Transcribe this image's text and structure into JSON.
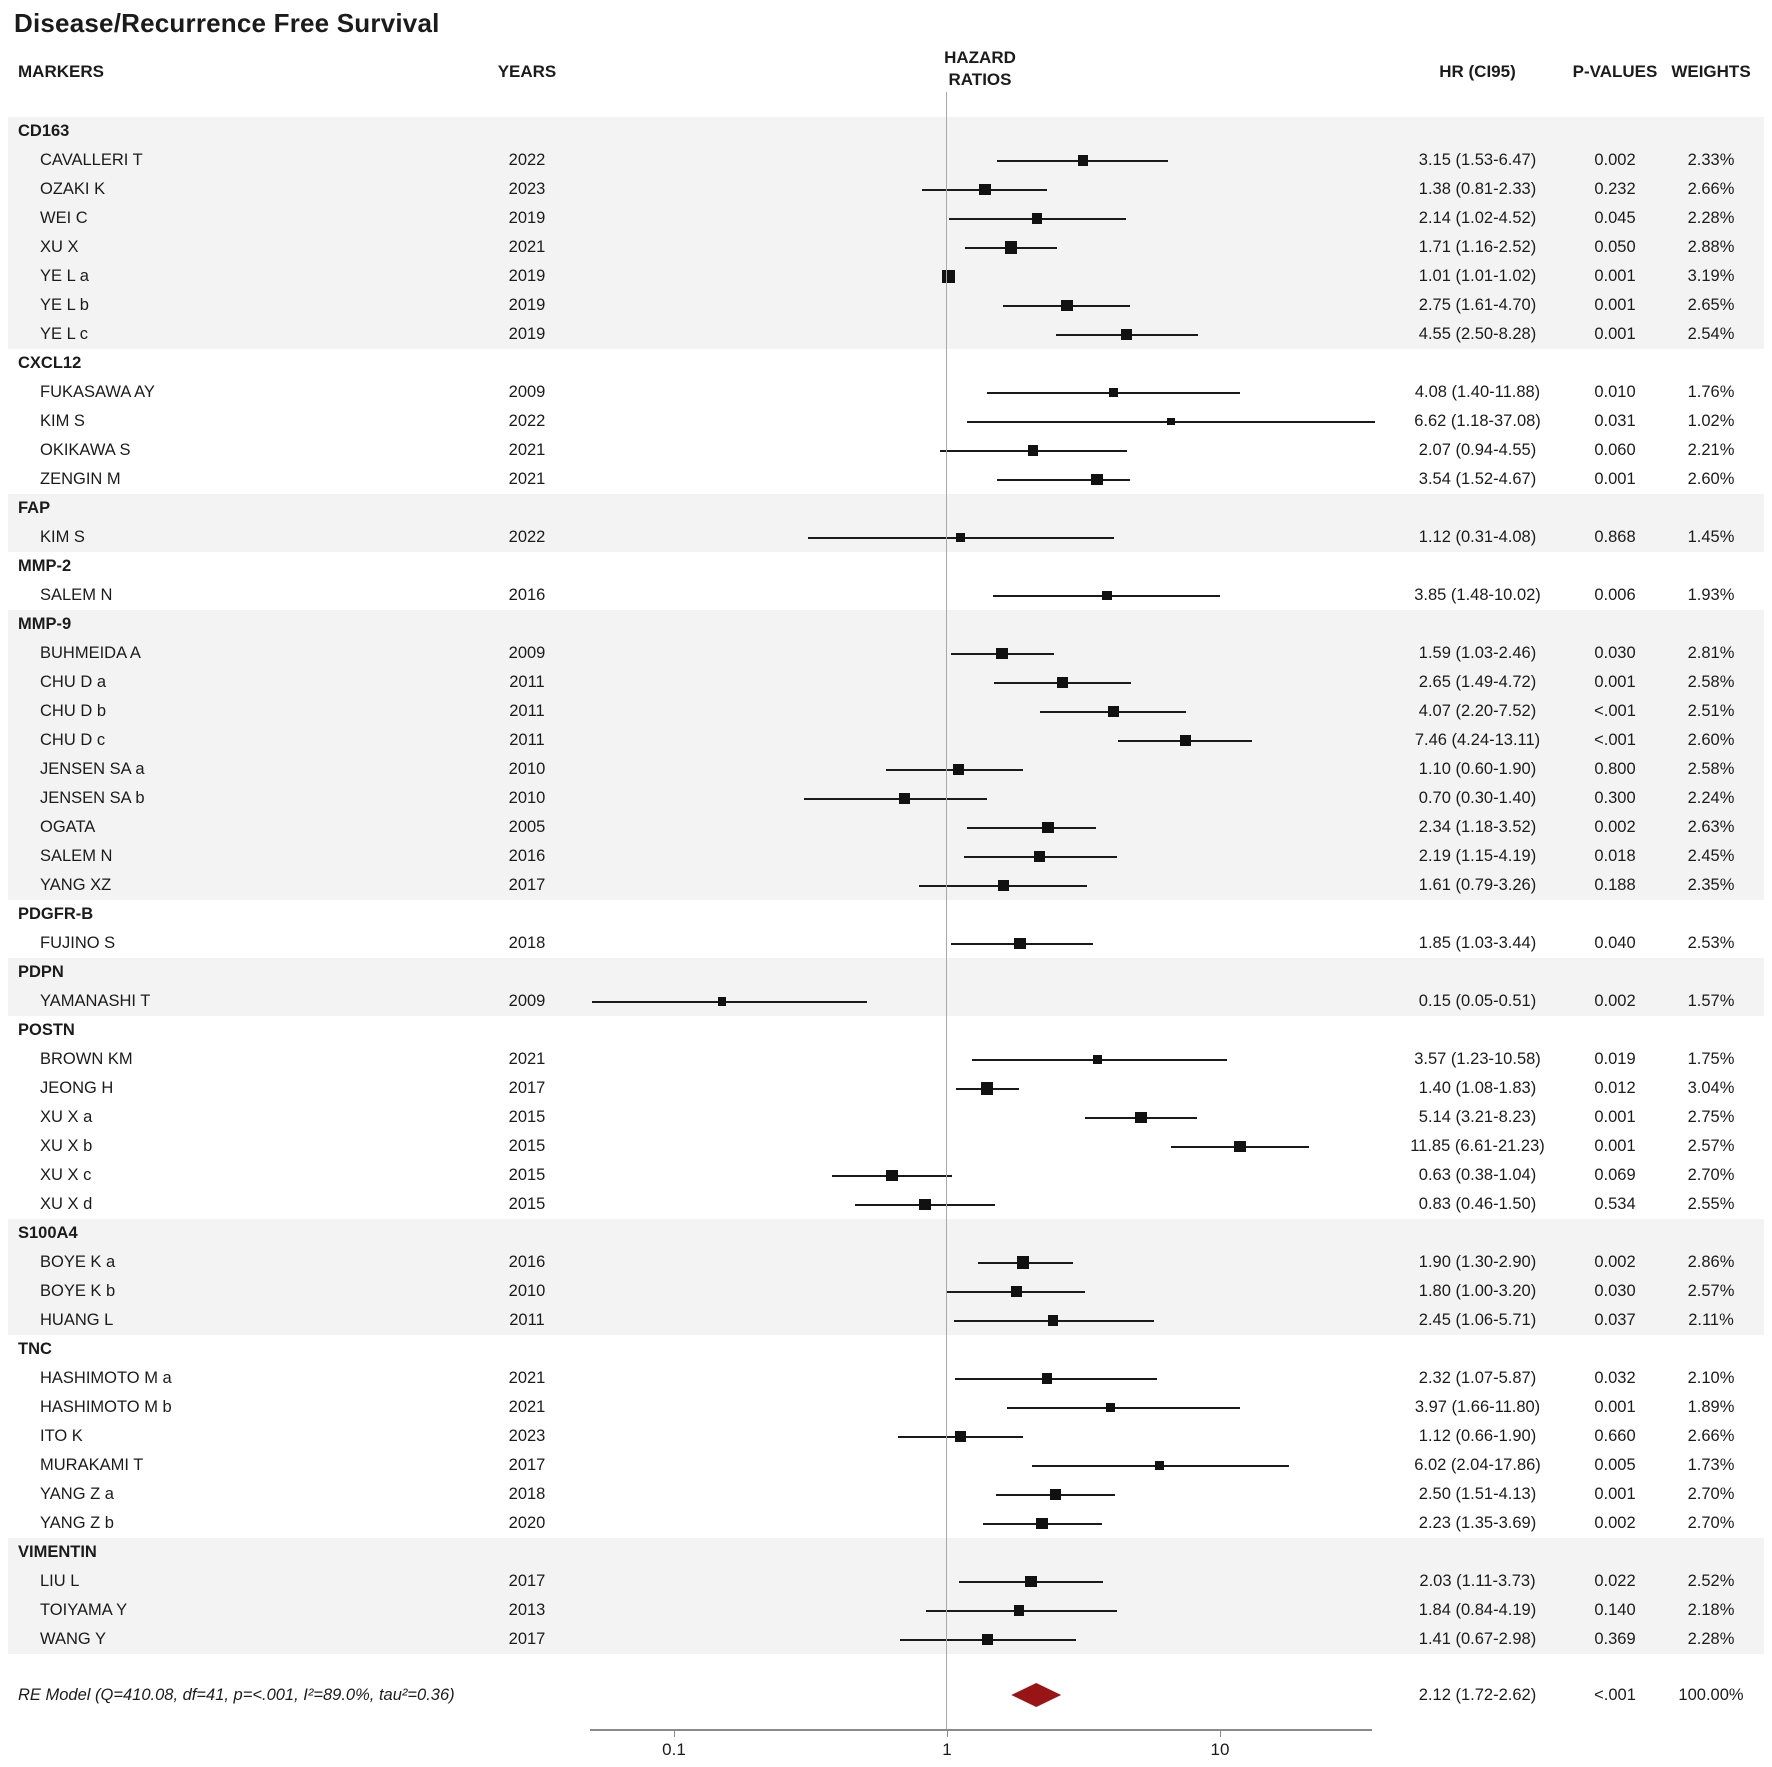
{
  "title": "Disease/Recurrence Free Survival",
  "columns": {
    "markers": "MARKERS",
    "years": "YEARS",
    "hazard_line1": "HAZARD",
    "hazard_line2": "RATIOS",
    "hr": "HR (CI95)",
    "p": "P-VALUES",
    "weights": "WEIGHTS"
  },
  "chart_data": {
    "type": "forest",
    "x_scale": "log10",
    "x_range": [
      0.05,
      36
    ],
    "reference_line": 1,
    "x_ticks": [
      0.1,
      1,
      10
    ],
    "x_tick_labels": [
      "0.1",
      "1",
      "10"
    ],
    "legend_position": "none",
    "grid": false,
    "colors": {
      "marker": "#111111",
      "ci_line": "#1a1a1a",
      "stripe": "#f3f3f3",
      "axis": "#8a8a8a",
      "ref_line": "#a8a8a8",
      "diamond": "#991414"
    },
    "groups": [
      {
        "name": "CD163",
        "shaded": true,
        "studies": [
          {
            "name": "CAVALLERI T",
            "year": "2022",
            "hr": 3.15,
            "lo": 1.53,
            "hi": 6.47,
            "hr_label": "3.15 (1.53-6.47)",
            "p": "0.002",
            "weight": "2.33%"
          },
          {
            "name": "OZAKI K",
            "year": "2023",
            "hr": 1.38,
            "lo": 0.81,
            "hi": 2.33,
            "hr_label": "1.38 (0.81-2.33)",
            "p": "0.232",
            "weight": "2.66%"
          },
          {
            "name": "WEI C",
            "year": "2019",
            "hr": 2.14,
            "lo": 1.02,
            "hi": 4.52,
            "hr_label": "2.14 (1.02-4.52)",
            "p": "0.045",
            "weight": "2.28%"
          },
          {
            "name": "XU X",
            "year": "2021",
            "hr": 1.71,
            "lo": 1.16,
            "hi": 2.52,
            "hr_label": "1.71 (1.16-2.52)",
            "p": "0.050",
            "weight": "2.88%"
          },
          {
            "name": "YE L a",
            "year": "2019",
            "hr": 1.01,
            "lo": 1.01,
            "hi": 1.02,
            "hr_label": "1.01 (1.01-1.02)",
            "p": "0.001",
            "weight": "3.19%"
          },
          {
            "name": "YE L b",
            "year": "2019",
            "hr": 2.75,
            "lo": 1.61,
            "hi": 4.7,
            "hr_label": "2.75 (1.61-4.70)",
            "p": "0.001",
            "weight": "2.65%"
          },
          {
            "name": "YE L c",
            "year": "2019",
            "hr": 4.55,
            "lo": 2.5,
            "hi": 8.28,
            "hr_label": "4.55 (2.50-8.28)",
            "p": "0.001",
            "weight": "2.54%"
          }
        ]
      },
      {
        "name": "CXCL12",
        "shaded": false,
        "studies": [
          {
            "name": "FUKASAWA AY",
            "year": "2009",
            "hr": 4.08,
            "lo": 1.4,
            "hi": 11.88,
            "hr_label": "4.08 (1.40-11.88)",
            "p": "0.010",
            "weight": "1.76%"
          },
          {
            "name": "KIM S",
            "year": "2022",
            "hr": 6.62,
            "lo": 1.18,
            "hi": 37.08,
            "hr_label": "6.62 (1.18-37.08)",
            "p": "0.031",
            "weight": "1.02%"
          },
          {
            "name": "OKIKAWA S",
            "year": "2021",
            "hr": 2.07,
            "lo": 0.94,
            "hi": 4.55,
            "hr_label": "2.07 (0.94-4.55)",
            "p": "0.060",
            "weight": "2.21%"
          },
          {
            "name": "ZENGIN M",
            "year": "2021",
            "hr": 3.54,
            "lo": 1.52,
            "hi": 4.67,
            "hr_label": "3.54 (1.52-4.67)",
            "p": "0.001",
            "weight": "2.60%"
          }
        ]
      },
      {
        "name": "FAP",
        "shaded": true,
        "studies": [
          {
            "name": "KIM S",
            "year": "2022",
            "hr": 1.12,
            "lo": 0.31,
            "hi": 4.08,
            "hr_label": "1.12 (0.31-4.08)",
            "p": "0.868",
            "weight": "1.45%"
          }
        ]
      },
      {
        "name": "MMP-2",
        "shaded": false,
        "studies": [
          {
            "name": "SALEM N",
            "year": "2016",
            "hr": 3.85,
            "lo": 1.48,
            "hi": 10.02,
            "hr_label": "3.85 (1.48-10.02)",
            "p": "0.006",
            "weight": "1.93%"
          }
        ]
      },
      {
        "name": "MMP-9",
        "shaded": true,
        "studies": [
          {
            "name": "BUHMEIDA A",
            "year": "2009",
            "hr": 1.59,
            "lo": 1.03,
            "hi": 2.46,
            "hr_label": "1.59 (1.03-2.46)",
            "p": "0.030",
            "weight": "2.81%"
          },
          {
            "name": "CHU D a",
            "year": "2011",
            "hr": 2.65,
            "lo": 1.49,
            "hi": 4.72,
            "hr_label": "2.65 (1.49-4.72)",
            "p": "0.001",
            "weight": "2.58%"
          },
          {
            "name": "CHU D b",
            "year": "2011",
            "hr": 4.07,
            "lo": 2.2,
            "hi": 7.52,
            "hr_label": "4.07 (2.20-7.52)",
            "p": "<.001",
            "weight": "2.51%"
          },
          {
            "name": "CHU D c",
            "year": "2011",
            "hr": 7.46,
            "lo": 4.24,
            "hi": 13.11,
            "hr_label": "7.46 (4.24-13.11)",
            "p": "<.001",
            "weight": "2.60%"
          },
          {
            "name": "JENSEN SA a",
            "year": "2010",
            "hr": 1.1,
            "lo": 0.6,
            "hi": 1.9,
            "hr_label": "1.10 (0.60-1.90)",
            "p": "0.800",
            "weight": "2.58%"
          },
          {
            "name": "JENSEN SA b",
            "year": "2010",
            "hr": 0.7,
            "lo": 0.3,
            "hi": 1.4,
            "hr_label": "0.70 (0.30-1.40)",
            "p": "0.300",
            "weight": "2.24%"
          },
          {
            "name": "OGATA",
            "year": "2005",
            "hr": 2.34,
            "lo": 1.18,
            "hi": 3.52,
            "hr_label": "2.34 (1.18-3.52)",
            "p": "0.002",
            "weight": "2.63%"
          },
          {
            "name": "SALEM N",
            "year": "2016",
            "hr": 2.19,
            "lo": 1.15,
            "hi": 4.19,
            "hr_label": "2.19 (1.15-4.19)",
            "p": "0.018",
            "weight": "2.45%"
          },
          {
            "name": "YANG XZ",
            "year": "2017",
            "hr": 1.61,
            "lo": 0.79,
            "hi": 3.26,
            "hr_label": "1.61 (0.79-3.26)",
            "p": "0.188",
            "weight": "2.35%"
          }
        ]
      },
      {
        "name": "PDGFR-B",
        "shaded": false,
        "studies": [
          {
            "name": "FUJINO S",
            "year": "2018",
            "hr": 1.85,
            "lo": 1.03,
            "hi": 3.44,
            "hr_label": "1.85 (1.03-3.44)",
            "p": "0.040",
            "weight": "2.53%"
          }
        ]
      },
      {
        "name": "PDPN",
        "shaded": true,
        "studies": [
          {
            "name": "YAMANASHI T",
            "year": "2009",
            "hr": 0.15,
            "lo": 0.05,
            "hi": 0.51,
            "hr_label": "0.15 (0.05-0.51)",
            "p": "0.002",
            "weight": "1.57%"
          }
        ]
      },
      {
        "name": "POSTN",
        "shaded": false,
        "studies": [
          {
            "name": "BROWN KM",
            "year": "2021",
            "hr": 3.57,
            "lo": 1.23,
            "hi": 10.58,
            "hr_label": "3.57 (1.23-10.58)",
            "p": "0.019",
            "weight": "1.75%"
          },
          {
            "name": "JEONG H",
            "year": "2017",
            "hr": 1.4,
            "lo": 1.08,
            "hi": 1.83,
            "hr_label": "1.40 (1.08-1.83)",
            "p": "0.012",
            "weight": "3.04%"
          },
          {
            "name": "XU X a",
            "year": "2015",
            "hr": 5.14,
            "lo": 3.21,
            "hi": 8.23,
            "hr_label": "5.14 (3.21-8.23)",
            "p": "0.001",
            "weight": "2.75%"
          },
          {
            "name": "XU X b",
            "year": "2015",
            "hr": 11.85,
            "lo": 6.61,
            "hi": 21.23,
            "hr_label": "11.85 (6.61-21.23)",
            "p": "0.001",
            "weight": "2.57%"
          },
          {
            "name": "XU X c",
            "year": "2015",
            "hr": 0.63,
            "lo": 0.38,
            "hi": 1.04,
            "hr_label": "0.63 (0.38-1.04)",
            "p": "0.069",
            "weight": "2.70%"
          },
          {
            "name": "XU X d",
            "year": "2015",
            "hr": 0.83,
            "lo": 0.46,
            "hi": 1.5,
            "hr_label": "0.83 (0.46-1.50)",
            "p": "0.534",
            "weight": "2.55%"
          }
        ]
      },
      {
        "name": "S100A4",
        "shaded": true,
        "studies": [
          {
            "name": "BOYE K a",
            "year": "2016",
            "hr": 1.9,
            "lo": 1.3,
            "hi": 2.9,
            "hr_label": "1.90 (1.30-2.90)",
            "p": "0.002",
            "weight": "2.86%"
          },
          {
            "name": "BOYE K b",
            "year": "2010",
            "hr": 1.8,
            "lo": 1.0,
            "hi": 3.2,
            "hr_label": "1.80 (1.00-3.20)",
            "p": "0.030",
            "weight": "2.57%"
          },
          {
            "name": "HUANG L",
            "year": "2011",
            "hr": 2.45,
            "lo": 1.06,
            "hi": 5.71,
            "hr_label": "2.45 (1.06-5.71)",
            "p": "0.037",
            "weight": "2.11%"
          }
        ]
      },
      {
        "name": "TNC",
        "shaded": false,
        "studies": [
          {
            "name": "HASHIMOTO M a",
            "year": "2021",
            "hr": 2.32,
            "lo": 1.07,
            "hi": 5.87,
            "hr_label": "2.32 (1.07-5.87)",
            "p": "0.032",
            "weight": "2.10%"
          },
          {
            "name": "HASHIMOTO M b",
            "year": "2021",
            "hr": 3.97,
            "lo": 1.66,
            "hi": 11.8,
            "hr_label": "3.97 (1.66-11.80)",
            "p": "0.001",
            "weight": "1.89%"
          },
          {
            "name": "ITO K",
            "year": "2023",
            "hr": 1.12,
            "lo": 0.66,
            "hi": 1.9,
            "hr_label": "1.12 (0.66-1.90)",
            "p": "0.660",
            "weight": "2.66%"
          },
          {
            "name": "MURAKAMI T",
            "year": "2017",
            "hr": 6.02,
            "lo": 2.04,
            "hi": 17.86,
            "hr_label": "6.02 (2.04-17.86)",
            "p": "0.005",
            "weight": "1.73%"
          },
          {
            "name": "YANG Z a",
            "year": "2018",
            "hr": 2.5,
            "lo": 1.51,
            "hi": 4.13,
            "hr_label": "2.50 (1.51-4.13)",
            "p": "0.001",
            "weight": "2.70%"
          },
          {
            "name": "YANG Z b",
            "year": "2020",
            "hr": 2.23,
            "lo": 1.35,
            "hi": 3.69,
            "hr_label": "2.23 (1.35-3.69)",
            "p": "0.002",
            "weight": "2.70%"
          }
        ]
      },
      {
        "name": "VIMENTIN",
        "shaded": true,
        "studies": [
          {
            "name": "LIU L",
            "year": "2017",
            "hr": 2.03,
            "lo": 1.11,
            "hi": 3.73,
            "hr_label": "2.03 (1.11-3.73)",
            "p": "0.022",
            "weight": "2.52%"
          },
          {
            "name": "TOIYAMA Y",
            "year": "2013",
            "hr": 1.84,
            "lo": 0.84,
            "hi": 4.19,
            "hr_label": "1.84 (0.84-4.19)",
            "p": "0.140",
            "weight": "2.18%"
          },
          {
            "name": "WANG Y",
            "year": "2017",
            "hr": 1.41,
            "lo": 0.67,
            "hi": 2.98,
            "hr_label": "1.41 (0.67-2.98)",
            "p": "0.369",
            "weight": "2.28%"
          }
        ]
      }
    ],
    "summary": {
      "label": "RE Model (Q=410.08, df=41, p=<.001, I²=89.0%, tau²=0.36)",
      "hr": 2.12,
      "lo": 1.72,
      "hi": 2.62,
      "hr_label": "2.12 (1.72-2.62)",
      "p": "<.001",
      "weight": "100.00%"
    }
  }
}
